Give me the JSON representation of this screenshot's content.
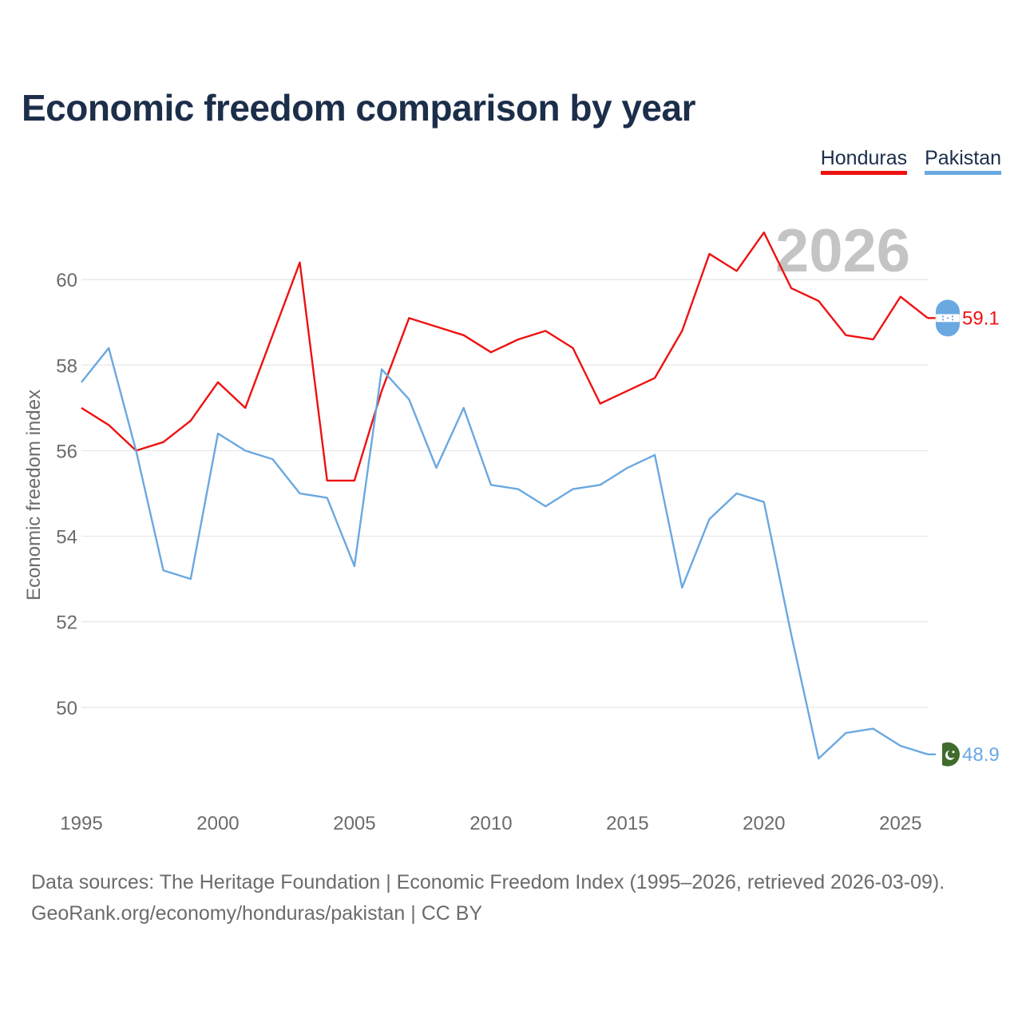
{
  "title": "Economic freedom comparison by year",
  "legend": [
    {
      "label": "Honduras",
      "color": "#ee1111"
    },
    {
      "label": "Pakistan",
      "color": "#6aa8e0"
    }
  ],
  "year_watermark": "2026",
  "footer": {
    "line1": "Data sources: The Heritage Foundation | Economic Freedom Index (1995–2026, retrieved 2026-03-09).",
    "line2": "GeoRank.org/economy/honduras/pakistan | CC BY"
  },
  "chart_data": {
    "type": "line",
    "title": "Economic freedom comparison by year",
    "xlabel": "",
    "ylabel": "Economic freedom index",
    "xlim": [
      1995,
      2026
    ],
    "ylim": [
      48,
      62
    ],
    "x_ticks": [
      1995,
      2000,
      2005,
      2010,
      2015,
      2020,
      2025
    ],
    "y_ticks": [
      50,
      52,
      54,
      56,
      58,
      60
    ],
    "grid": true,
    "legend_position": "top-right",
    "x": [
      1995,
      1996,
      1997,
      1998,
      1999,
      2000,
      2001,
      2002,
      2003,
      2004,
      2005,
      2006,
      2007,
      2008,
      2009,
      2010,
      2011,
      2012,
      2013,
      2014,
      2015,
      2016,
      2017,
      2018,
      2019,
      2020,
      2021,
      2022,
      2023,
      2024,
      2025,
      2026
    ],
    "series": [
      {
        "name": "Honduras",
        "color": "#ee1111",
        "end_label": "59.1",
        "values": [
          57.0,
          56.6,
          56.0,
          56.2,
          56.7,
          57.6,
          57.0,
          58.7,
          60.4,
          55.3,
          55.3,
          57.4,
          59.1,
          58.9,
          58.7,
          58.3,
          58.6,
          58.8,
          58.4,
          57.1,
          57.4,
          57.7,
          58.8,
          60.6,
          60.2,
          61.1,
          59.8,
          59.5,
          58.7,
          58.6,
          59.6,
          59.1
        ]
      },
      {
        "name": "Pakistan",
        "color": "#6aa8e0",
        "end_label": "48.9",
        "values": [
          57.6,
          58.4,
          56.0,
          53.2,
          53.0,
          56.4,
          56.0,
          55.8,
          55.0,
          54.9,
          53.3,
          57.9,
          57.2,
          55.6,
          57.0,
          55.2,
          55.1,
          54.7,
          55.1,
          55.2,
          55.6,
          55.9,
          52.8,
          54.4,
          55.0,
          54.8,
          51.7,
          48.8,
          49.4,
          49.5,
          49.1,
          48.9
        ]
      }
    ]
  }
}
